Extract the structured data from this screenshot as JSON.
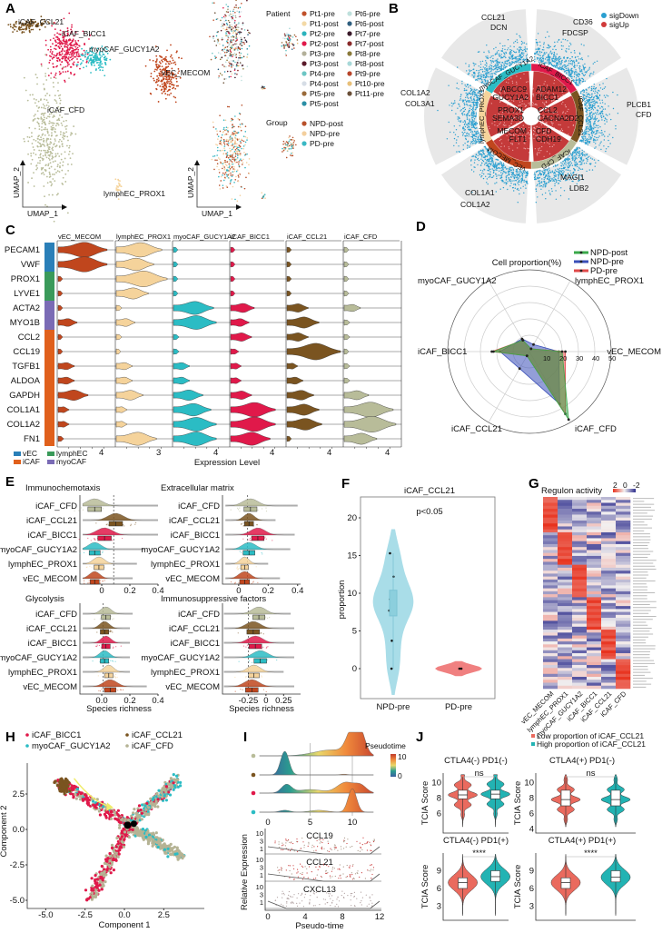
{
  "panel_labels": [
    "A",
    "B",
    "C",
    "D",
    "E",
    "F",
    "G",
    "H",
    "I",
    "J"
  ],
  "clusters": [
    {
      "name": "vEC_MECOM",
      "color": "#c0461d"
    },
    {
      "name": "lymphEC_PROX1",
      "color": "#f5d39b"
    },
    {
      "name": "myoCAF_GUCY1A2",
      "color": "#2bbcc4"
    },
    {
      "name": "iCAF_BICC1",
      "color": "#e0194a"
    },
    {
      "name": "iCAF_CCL21",
      "color": "#7a5420"
    },
    {
      "name": "iCAF_CFD",
      "color": "#b8bc99"
    }
  ],
  "chart_data": [
    {
      "panel": "A",
      "type": "scatter",
      "xlabel": "UMAP_1",
      "ylabel": "UMAP_2",
      "cluster_labels": [
        "iCAF_CCL21",
        "iCAF_BICC1",
        "myoCAF_GUCY1A2",
        "vEC_MECOM",
        "iCAF_CFD",
        "lymphEC_PROX1"
      ],
      "patient_legend": {
        "title": "Patient",
        "entries": [
          {
            "name": "Pt1-pre",
            "color": "#c0502a"
          },
          {
            "name": "Pt1-post",
            "color": "#f3d9a6"
          },
          {
            "name": "Pt2-pre",
            "color": "#2bb3bd"
          },
          {
            "name": "Pt2-post",
            "color": "#e0194a"
          },
          {
            "name": "Pt3-pre",
            "color": "#b3b09a"
          },
          {
            "name": "Pt3-post",
            "color": "#5a1a2a"
          },
          {
            "name": "Pt4-pre",
            "color": "#6cc6c4"
          },
          {
            "name": "Pt4-post",
            "color": "#d6dde6"
          },
          {
            "name": "Pt5-pre",
            "color": "#9a6a3a"
          },
          {
            "name": "Pt5-post",
            "color": "#2a8fa6"
          },
          {
            "name": "Pt6-pre",
            "color": "#bfe0dc"
          },
          {
            "name": "Pt6-post",
            "color": "#2f5f7f"
          },
          {
            "name": "Pt7-pre",
            "color": "#3a1a2a"
          },
          {
            "name": "Pt7-post",
            "color": "#8a2a2a"
          },
          {
            "name": "Pt8-pre",
            "color": "#8a7a3a"
          },
          {
            "name": "Pt8-post",
            "color": "#a8d8d8"
          },
          {
            "name": "Pt9-pre",
            "color": "#b8452a"
          },
          {
            "name": "Pt10-pre",
            "color": "#e8c07a"
          },
          {
            "name": "Pt11-pre",
            "color": "#6a5038"
          }
        ]
      },
      "group_legend": {
        "title": "Group",
        "entries": [
          {
            "name": "NPD-post",
            "color": "#b8502a"
          },
          {
            "name": "NPD-pre",
            "color": "#f3cf9e"
          },
          {
            "name": "PD-pre",
            "color": "#3ab8c4"
          }
        ]
      }
    },
    {
      "panel": "B",
      "type": "scatter",
      "legend": [
        {
          "name": "sigDown",
          "color": "#2a9fd0"
        },
        {
          "name": "sigUp",
          "color": "#d03a3a"
        }
      ],
      "sectors": [
        {
          "cluster": "myoCAF_GUCY1A2",
          "outer_genes": [
            "CCL21",
            "DCN"
          ],
          "inner_genes": [
            "ABCC9",
            "GUCY1A2"
          ]
        },
        {
          "cluster": "iCAF_BICC1",
          "outer_genes": [
            "CD36",
            "FDCSP"
          ],
          "inner_genes": [
            "ADAM12",
            "BICC1"
          ]
        },
        {
          "cluster": "iCAF_CCL21",
          "outer_genes": [
            "PLCB1",
            "CFD"
          ],
          "inner_genes": [
            "CCL2",
            "CACNA2D2"
          ]
        },
        {
          "cluster": "iCAF_CFD",
          "outer_genes": [
            "MAGI1",
            "LDB2"
          ],
          "inner_genes": [
            "CFD",
            "CDH19"
          ]
        },
        {
          "cluster": "vEC_MECOM",
          "outer_genes": [
            "COL1A1",
            "COL1A2"
          ],
          "inner_genes": [
            "MECOM",
            "FLT1"
          ]
        },
        {
          "cluster": "lymphEC_PROX1",
          "outer_genes": [
            "COL1A2",
            "COL3A1"
          ],
          "inner_genes": [
            "PROX1",
            "SEMA3D"
          ]
        }
      ]
    },
    {
      "panel": "C",
      "type": "violin",
      "xlabel": "Expression Level",
      "columns": [
        "vEC_MECOM",
        "lymphEC_PROX1",
        "myoCAF_GUCY1A2",
        "iCAF_BICC1",
        "iCAF_CCL21",
        "iCAF_CFD"
      ],
      "x_tick_labels": [
        "4",
        "3",
        "4",
        "4",
        "4",
        "4"
      ],
      "genes": [
        "PECAM1",
        "VWF",
        "PROX1",
        "LYVE1",
        "ACTA2",
        "MYO1B",
        "CCL2",
        "CCL19",
        "TGFB1",
        "ALDOA",
        "GAPDH",
        "COL1A1",
        "COL1A2",
        "FN1"
      ],
      "gene_groups": [
        "vEC",
        "vEC",
        "lymphEC",
        "lymphEC",
        "myoCAF",
        "myoCAF",
        "iCAF",
        "iCAF",
        "iCAF",
        "iCAF",
        "iCAF",
        "iCAF",
        "iCAF",
        "iCAF"
      ],
      "group_legend": [
        {
          "name": "vEC",
          "color": "#2a7fb8"
        },
        {
          "name": "lymphEC",
          "color": "#3a9a5a"
        },
        {
          "name": "iCAF",
          "color": "#e0601c"
        },
        {
          "name": "myoCAF",
          "color": "#7a6bb5"
        }
      ],
      "relative_expression": [
        [
          0.9,
          0.85,
          0.05,
          0.02,
          0.02,
          0.02
        ],
        [
          0.9,
          0.7,
          0.05,
          0.02,
          0.02,
          0.02
        ],
        [
          0.02,
          0.95,
          0.02,
          0.02,
          0.02,
          0.02
        ],
        [
          0.02,
          0.6,
          0.05,
          0.02,
          0.02,
          0.02
        ],
        [
          0.05,
          0.1,
          0.75,
          0.45,
          0.4,
          0.3
        ],
        [
          0.35,
          0.35,
          0.8,
          0.35,
          0.6,
          0.1
        ],
        [
          0.02,
          0.1,
          0.1,
          0.4,
          0.4,
          0.1
        ],
        [
          0.02,
          0.05,
          0.1,
          0.15,
          1.0,
          0.05
        ],
        [
          0.3,
          0.3,
          0.3,
          0.2,
          0.2,
          0.1
        ],
        [
          0.3,
          0.3,
          0.3,
          0.2,
          0.3,
          0.1
        ],
        [
          0.55,
          0.5,
          0.55,
          0.4,
          0.5,
          0.45
        ],
        [
          0.2,
          0.2,
          0.7,
          0.85,
          0.6,
          0.9
        ],
        [
          0.2,
          0.2,
          0.8,
          0.85,
          0.65,
          0.95
        ],
        [
          0.1,
          0.75,
          0.8,
          0.75,
          0.05,
          0.6
        ]
      ]
    },
    {
      "panel": "D",
      "type": "radar",
      "title": "Cell proportion(%)",
      "axes": [
        "vEC_MECOM",
        "lymphEC_PROX1",
        "myoCAF_GUCY1A2",
        "iCAF_BICC1",
        "iCAF_CCL21",
        "iCAF_CFD"
      ],
      "rlim": [
        0,
        50
      ],
      "r_ticks": [
        "10",
        "20",
        "30",
        "40",
        "50"
      ],
      "legend_position": "top-right",
      "series": [
        {
          "name": "NPD-post",
          "color": "#3aa84a",
          "values": [
            20,
            2,
            8,
            22,
            3,
            48
          ]
        },
        {
          "name": "NPD-pre",
          "color": "#3a4fb8",
          "values": [
            18,
            5,
            9,
            18,
            12,
            37
          ]
        },
        {
          "name": "PD-pre",
          "color": "#e04a4a",
          "values": [
            22,
            2,
            8,
            23,
            3,
            44
          ]
        }
      ]
    },
    {
      "panel": "E",
      "type": "raincloud",
      "xlabel": "Species richness",
      "categories": [
        "iCAF_CFD",
        "iCAF_CCL21",
        "iCAF_BICC1",
        "myoCAF_GUCY1A2",
        "lymphEC_PROX1",
        "vEC_MECOM"
      ],
      "subplots": [
        {
          "title": "Immunochemotaxis",
          "xlim": [
            -0.155,
            0.4
          ],
          "x_ticks": [
            0,
            0.2,
            0.4
          ],
          "x_tick_labels": [
            "0",
            "0.2",
            "0.4"
          ],
          "reference_line": 0.085,
          "medians": [
            -0.05,
            0.1,
            0.02,
            -0.05,
            -0.02,
            -0.05
          ],
          "max": [
            0.4,
            0.4,
            0.4,
            0.3,
            0.25,
            0.22
          ]
        },
        {
          "title": "Extracellular matrix",
          "xlim": [
            -0.11,
            0.42
          ],
          "x_ticks": [
            0,
            0.2,
            0.4
          ],
          "x_tick_labels": [
            "0",
            "0.2",
            "0.4"
          ],
          "reference_line": 0.06,
          "medians": [
            0.08,
            0.07,
            0.13,
            0.07,
            0.04,
            0.04
          ],
          "max": [
            0.4,
            0.25,
            0.38,
            0.35,
            0.2,
            0.28
          ]
        },
        {
          "title": "Glycolysis",
          "xlim": [
            -0.155,
            0.4
          ],
          "x_ticks": [
            0,
            0.2,
            0.4
          ],
          "x_tick_labels": [
            "0.0",
            "0.2",
            "0.4"
          ],
          "reference_line": 0.01,
          "medians": [
            0.03,
            0.02,
            0.03,
            0.02,
            0.05,
            0.06
          ],
          "max": [
            0.22,
            0.2,
            0.2,
            0.2,
            0.2,
            0.32
          ]
        },
        {
          "title": "Immunosuppressive factors",
          "xlim": [
            -0.615,
            0.49
          ],
          "x_ticks": [
            -0.25,
            0,
            0.25
          ],
          "x_tick_labels": [
            "-0.25",
            "0",
            "0.25"
          ],
          "reference_line": -0.25,
          "medians": [
            -0.1,
            -0.18,
            -0.15,
            -0.08,
            -0.17,
            -0.2
          ],
          "max": [
            0.35,
            0.4,
            0.4,
            0.4,
            0.25,
            0.4
          ]
        }
      ]
    },
    {
      "panel": "F",
      "type": "violin",
      "title": "iCAF_CCL21",
      "annotation": "p<0.05",
      "ylabel": "proportion",
      "ylim": [
        -4,
        22
      ],
      "y_ticks": [
        "0",
        "5",
        "10",
        "15",
        "20"
      ],
      "categories": [
        "NPD-pre",
        "PD-pre"
      ],
      "colors": [
        "#a9dde8",
        "#f08080"
      ],
      "points": [
        [
          15.3,
          12.2,
          9.8,
          9.2,
          7.8,
          7.7,
          3.7,
          0
        ],
        [
          0,
          0
        ]
      ],
      "box": {
        "q1": 7,
        "median": 8.5,
        "q3": 10.4,
        "whisker_low": 0,
        "whisker_high": 15.3
      }
    },
    {
      "panel": "G",
      "type": "heatmap",
      "title": "Regulon activity",
      "legend_ticks": [
        "2",
        "0",
        "-2"
      ],
      "colors": {
        "high": "#e8321e",
        "mid": "#f3f0f0",
        "low": "#2c2c8c"
      },
      "columns": [
        "vEC_MECOM",
        "lymphEC_PROX1",
        "myoCAF_GUCY1A2",
        "iCAF_BICC1",
        "iCAF_CCL21",
        "iCAF_CFD"
      ],
      "row_block_sizes": [
        12,
        11,
        11,
        11,
        10,
        10
      ]
    },
    {
      "panel": "H",
      "type": "scatter",
      "xlabel": "Component 1",
      "ylabel": "Component 2",
      "xlim": [
        -5.9,
        4.9
      ],
      "ylim": [
        -5.5,
        4.3
      ],
      "x_ticks": [
        "-5.0",
        "-2.5",
        "0.0",
        "2.5"
      ],
      "y_ticks": [
        "2.5",
        "0.0",
        "-2.5",
        "-5.0"
      ],
      "series": [
        {
          "name": "iCAF_BICC1",
          "color": "#e0194a"
        },
        {
          "name": "myoCAF_GUCY1A2",
          "color": "#2bbcc4"
        },
        {
          "name": "iCAF_CCL21",
          "color": "#7a5420"
        },
        {
          "name": "iCAF_CFD",
          "color": "#b5b394"
        }
      ],
      "branches": [
        {
          "from": [
            -4.2,
            3.4
          ],
          "to": [
            0.3,
            0.3
          ],
          "composition": {
            "iCAF_BICC1": 0.6,
            "iCAF_CFD": 0.3,
            "myoCAF_GUCY1A2": 0.1
          }
        },
        {
          "from": [
            0.3,
            0.3
          ],
          "to": [
            3.4,
            3.6
          ],
          "composition": {
            "iCAF_CFD": 0.5,
            "myoCAF_GUCY1A2": 0.3,
            "iCAF_BICC1": 0.2
          }
        },
        {
          "from": [
            0.3,
            0.3
          ],
          "to": [
            3.6,
            -1.9
          ],
          "composition": {
            "iCAF_CFD": 0.8,
            "myoCAF_GUCY1A2": 0.2
          }
        },
        {
          "from": [
            0.3,
            0.3
          ],
          "to": [
            -2.1,
            -4.9
          ],
          "composition": {
            "iCAF_BICC1": 0.55,
            "iCAF_CFD": 0.45
          }
        }
      ],
      "iCAF_CCL21_center": [
        -3.9,
        3.1
      ]
    },
    {
      "panel": "I",
      "type": "ridge",
      "legend_title": "Pseudotime",
      "legend_ticks": [
        "10",
        "0"
      ],
      "x_ticks": [
        "0",
        "5",
        "10"
      ],
      "rows": [
        {
          "cluster": "iCAF_CFD",
          "peaks": [
            [
              7.5,
              2.0,
              0.25
            ],
            [
              10,
              0.7,
              1.0
            ],
            [
              11,
              0.6,
              0.8
            ]
          ]
        },
        {
          "cluster": "iCAF_CCL21",
          "peaks": [
            [
              2,
              0.5,
              1.0
            ],
            [
              9,
              0.4,
              0.03
            ]
          ]
        },
        {
          "cluster": "iCAF_BICC1",
          "peaks": [
            [
              2.2,
              0.6,
              0.35
            ],
            [
              5,
              1.5,
              0.15
            ],
            [
              9.2,
              1.0,
              0.45
            ],
            [
              11,
              0.7,
              0.3
            ]
          ]
        },
        {
          "cluster": "myoCAF_GUCY1A2",
          "peaks": [
            [
              2,
              0.6,
              0.08
            ],
            [
              6,
              1,
              0.08
            ],
            [
              10,
              0.5,
              1.0
            ]
          ]
        }
      ],
      "expression": {
        "ylabel": "Relative Expression",
        "xlabel": "Pseudo-time",
        "x_ticks": [
          "0",
          "4",
          "8",
          "12"
        ],
        "y_ticks": [
          "10",
          "3",
          "1"
        ],
        "genes": [
          "CCL19",
          "CCL21",
          "CXCL13"
        ]
      }
    },
    {
      "panel": "J",
      "type": "violin",
      "legend": [
        {
          "name": "Low proportion of iCAF_CCL21",
          "color": "#ea6a5e"
        },
        {
          "name": "High proportion of iCAF_CCL21",
          "color": "#22b3b3"
        }
      ],
      "ylabel": "TCIA Score",
      "subplots": [
        {
          "title": "CTLA4(-) PD1(-)",
          "significance": "ns",
          "y_ticks": [
            6,
            8,
            10
          ],
          "ylim": [
            3.5,
            11.2
          ],
          "low": {
            "median": 8.4,
            "q1": 7.9,
            "q3": 9.0
          },
          "high": {
            "median": 8.5,
            "q1": 7.9,
            "q3": 9.0
          }
        },
        {
          "title": "CTLA4(+) PD1(-)",
          "significance": "ns",
          "y_ticks": [
            4,
            6,
            8,
            10
          ],
          "ylim": [
            3.5,
            11.2
          ],
          "low": {
            "median": 7.8,
            "q1": 7.0,
            "q3": 9.0
          },
          "high": {
            "median": 7.8,
            "q1": 7.0,
            "q3": 9.0
          }
        },
        {
          "title": "CTLA4(-) PD1(+)",
          "significance": "****",
          "y_ticks": [
            3,
            6,
            9
          ],
          "ylim": [
            0.6,
            12
          ],
          "low": {
            "median": 7.0,
            "q1": 6.0,
            "q3": 7.8
          },
          "high": {
            "median": 8.0,
            "q1": 7.2,
            "q3": 9.0
          }
        },
        {
          "title": "CTLA4(+) PD1(+)",
          "significance": "****",
          "y_ticks": [
            3,
            6,
            9
          ],
          "ylim": [
            0.6,
            12
          ],
          "low": {
            "median": 7.0,
            "q1": 6.0,
            "q3": 7.8
          },
          "high": {
            "median": 7.9,
            "q1": 7.1,
            "q3": 9.0
          }
        }
      ]
    }
  ]
}
